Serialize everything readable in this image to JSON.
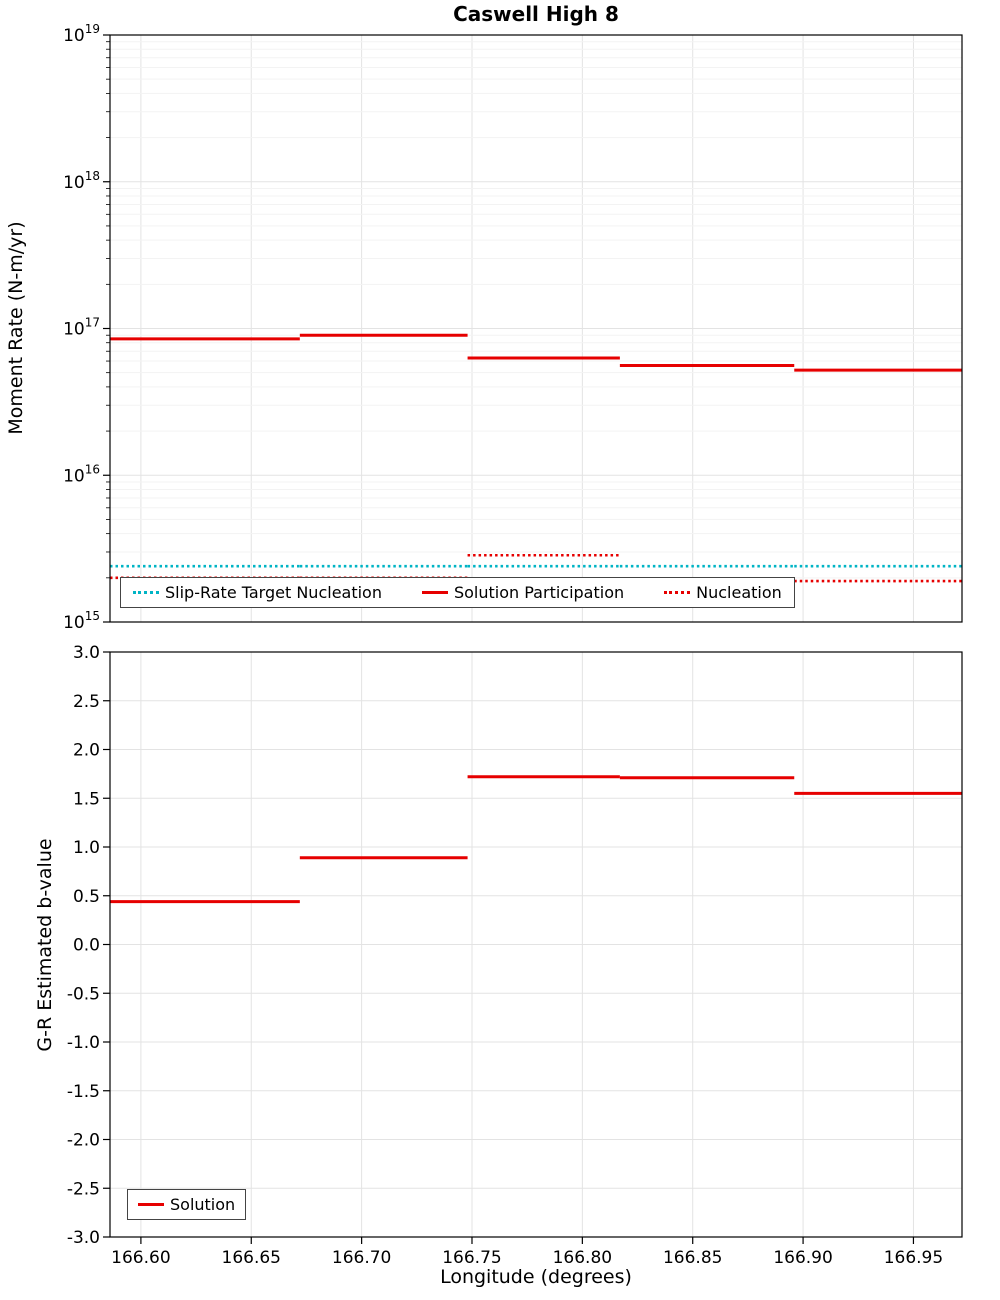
{
  "title": "Caswell High 8",
  "style": {
    "red": "#e60000",
    "cyan": "#00b4c5",
    "grid_major": "#e3e3e3",
    "grid_minor": "#f3f3f3",
    "axis": "#000000",
    "text": "#000000",
    "background": "#ffffff",
    "legend_border": "#444444"
  },
  "chart_data": [
    {
      "type": "line",
      "panel": "moment_rate",
      "title": "Caswell High 8",
      "ylabel": "Moment Rate (N-m/yr)",
      "yscale": "log",
      "ylim": [
        1000000000000000.0,
        1e+19
      ],
      "y_tick_base": "10",
      "y_tick_exponents": [
        15,
        16,
        17,
        18,
        19
      ],
      "xlim": [
        166.586,
        166.972
      ],
      "x_bins": [
        166.586,
        166.672,
        166.748,
        166.817,
        166.896,
        166.972
      ],
      "grid": true,
      "legend_position": "bottom-center",
      "series": [
        {
          "name": "Slip-Rate Target Nucleation",
          "style": "dotted",
          "color": "#00b4c5",
          "values": [
            2400000000000000.0,
            2400000000000000.0,
            2400000000000000.0,
            2400000000000000.0,
            2400000000000000.0
          ]
        },
        {
          "name": "Solution Participation",
          "style": "solid",
          "color": "#e60000",
          "values": [
            8.5e+16,
            9e+16,
            6.3e+16,
            5.6e+16,
            5.2e+16
          ]
        },
        {
          "name": "Nucleation",
          "style": "dotted",
          "color": "#e60000",
          "values": [
            2000000000000000.0,
            2000000000000000.0,
            2850000000000000.0,
            1950000000000000.0,
            1900000000000000.0
          ]
        }
      ]
    },
    {
      "type": "line",
      "panel": "b_value",
      "ylabel": "G-R Estimated b-value",
      "xlabel": "Longitude (degrees)",
      "yscale": "linear",
      "ylim": [
        -3.0,
        3.0
      ],
      "y_ticks": [
        "3.0",
        "2.5",
        "2.0",
        "1.5",
        "1.0",
        "0.5",
        "0.0",
        "-0.5",
        "-1.0",
        "-1.5",
        "-2.0",
        "-2.5",
        "-3.0"
      ],
      "xlim": [
        166.586,
        166.972
      ],
      "x_ticks": [
        "166.60",
        "166.65",
        "166.70",
        "166.75",
        "166.80",
        "166.85",
        "166.90",
        "166.95"
      ],
      "x_bins": [
        166.586,
        166.672,
        166.748,
        166.817,
        166.896,
        166.972
      ],
      "grid": true,
      "legend_position": "bottom-left",
      "series": [
        {
          "name": "Solution",
          "style": "solid",
          "color": "#e60000",
          "values": [
            0.44,
            0.89,
            1.72,
            1.71,
            1.55
          ]
        }
      ]
    }
  ]
}
